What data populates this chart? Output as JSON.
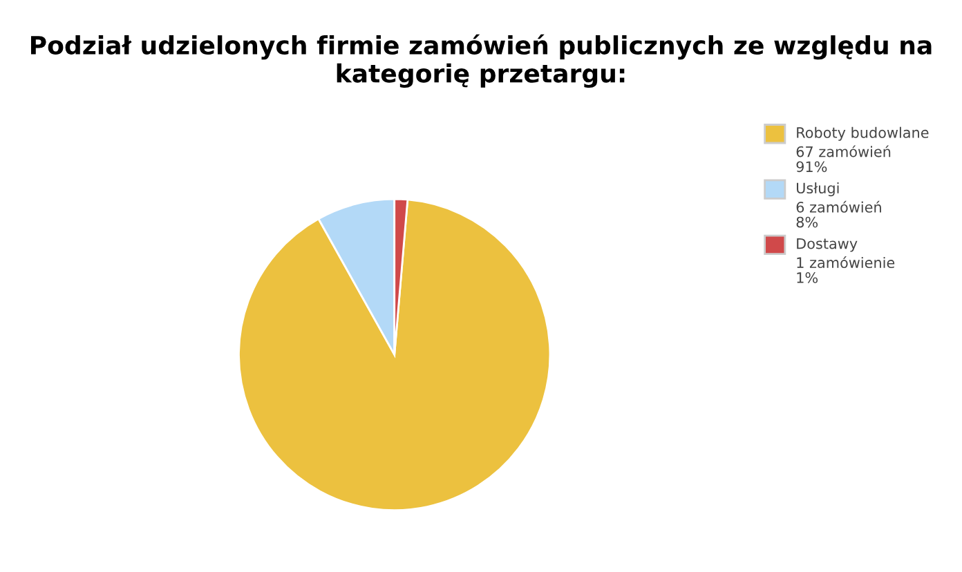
{
  "chart_data": {
    "type": "pie",
    "title": "Podział udzielonych firmie zamówień publicznych ze względu na\nkategorię przetargu:",
    "categories": [
      "Roboty budowlane",
      "Usługi",
      "Dostawy"
    ],
    "values": [
      67,
      6,
      1
    ],
    "value_labels": [
      "67 zamówień\n91%",
      "6 zamówień\n8%",
      "1 zamówienie\n1%"
    ],
    "colors": [
      "#ecc13f",
      "#b3d9f7",
      "#d0494a"
    ],
    "legend": "right"
  }
}
